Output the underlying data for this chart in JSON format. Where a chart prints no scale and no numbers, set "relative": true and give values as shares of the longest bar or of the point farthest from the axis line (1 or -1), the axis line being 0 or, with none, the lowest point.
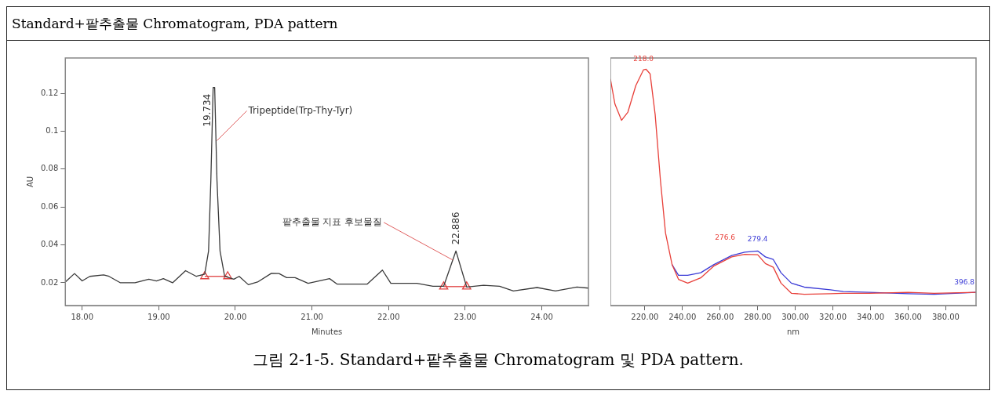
{
  "chart_data": [
    {
      "type": "line",
      "title": "Standard+팥추출물 Chromatogram, PDA pattern",
      "xlabel": "Minutes",
      "ylabel": "AU",
      "xlim": [
        17.78,
        24.61
      ],
      "ylim": [
        0.008,
        0.1386
      ],
      "xticks": [
        {
          "value": 18,
          "label": "18.00"
        },
        {
          "value": 19,
          "label": "19.00"
        },
        {
          "value": 20,
          "label": "20.00"
        },
        {
          "value": 21,
          "label": "21.00"
        },
        {
          "value": 22,
          "label": "22.00"
        },
        {
          "value": 23,
          "label": "23.00"
        },
        {
          "value": 24,
          "label": "24.00"
        }
      ],
      "yticks": [
        0.02,
        0.04,
        0.06,
        0.08,
        0.1,
        0.12
      ],
      "series": [
        {
          "color": "#3a3a3a",
          "marker": "none",
          "x": [
            17.78,
            17.9,
            18.0,
            18.1,
            18.28,
            18.35,
            18.5,
            18.69,
            18.87,
            18.97,
            19.06,
            19.18,
            19.35,
            19.49,
            19.6,
            19.65,
            19.68,
            19.71,
            19.73,
            19.76,
            19.8,
            19.86,
            19.98,
            20.05,
            20.17,
            20.29,
            20.47,
            20.57,
            20.67,
            20.78,
            20.95,
            21.23,
            21.33,
            21.72,
            21.92,
            22.03,
            22.37,
            22.58,
            22.72,
            22.88,
            23.02,
            23.24,
            23.45,
            23.63,
            23.94,
            24.18,
            24.46,
            24.61
          ],
          "values": [
            0.0204,
            0.0249,
            0.021,
            0.0234,
            0.0242,
            0.0234,
            0.02,
            0.02,
            0.0219,
            0.021,
            0.0222,
            0.02,
            0.0264,
            0.0234,
            0.0246,
            0.0368,
            0.074,
            0.123,
            0.123,
            0.074,
            0.0368,
            0.0234,
            0.0219,
            0.0234,
            0.019,
            0.0204,
            0.025,
            0.0249,
            0.0227,
            0.0227,
            0.0197,
            0.0222,
            0.0193,
            0.0193,
            0.0267,
            0.0197,
            0.0197,
            0.0182,
            0.0182,
            0.0368,
            0.0178,
            0.0187,
            0.0182,
            0.0157,
            0.0175,
            0.0157,
            0.0178,
            0.0172
          ]
        },
        {
          "type": "line",
          "color": "#e04040",
          "marker": "triangle",
          "x": [
            19.6,
            19.9
          ],
          "values": [
            0.0234,
            0.0234
          ]
        },
        {
          "type": "line",
          "color": "#e04040",
          "marker": "triangle",
          "x": [
            22.72,
            23.02
          ],
          "values": [
            0.018,
            0.018
          ]
        }
      ],
      "annotations": [
        {
          "text": "19.734",
          "x": 19.734,
          "y": 0.123
        },
        {
          "text": "Tripeptide(Trp-Thy-Tyr)",
          "x": 19.76,
          "y": 0.095
        },
        {
          "text": "22.886",
          "x": 22.886,
          "y": 0.0368
        },
        {
          "text": "팥추출물 지표 후보물질",
          "x": 22.84,
          "y": 0.032
        },
        "그림 2-1-5. Standard+팥추출물 Chromatogram 및 PDA pattern."
      ]
    },
    {
      "type": "line",
      "relative": true,
      "xlabel": "nm",
      "xlim": [
        201.7,
        396.1
      ],
      "xticks": [
        {
          "value": 220,
          "label": "220.00"
        },
        {
          "value": 240,
          "label": "240.00"
        },
        {
          "value": 260,
          "label": "260.00"
        },
        {
          "value": 280,
          "label": "280.00"
        },
        {
          "value": 300,
          "label": "300.00"
        },
        {
          "value": 320,
          "label": "320.00"
        },
        {
          "value": 340,
          "label": "340.00"
        },
        {
          "value": 360,
          "label": "360.00"
        },
        {
          "value": 380,
          "label": "380.00"
        }
      ],
      "series": [
        {
          "color": "#e8403a",
          "x": [
            201.7,
            204.1,
            207.6,
            211.0,
            215.2,
            219.3,
            220.7,
            222.8,
            225.5,
            228.3,
            231.0,
            234.5,
            237.9,
            242.8,
            249.7,
            256.6,
            266.2,
            273.1,
            280.0,
            284.1,
            288.3,
            292.4,
            297.9,
            304.8,
            318.6,
            325.5,
            339.3,
            360.0,
            373.8,
            396.1
          ],
          "values": [
            0.959,
            0.853,
            0.784,
            0.819,
            0.931,
            0.998,
            1.0,
            0.981,
            0.808,
            0.53,
            0.307,
            0.173,
            0.111,
            0.095,
            0.117,
            0.167,
            0.206,
            0.217,
            0.215,
            0.178,
            0.162,
            0.095,
            0.052,
            0.048,
            0.05,
            0.052,
            0.052,
            0.056,
            0.052,
            0.056
          ]
        },
        {
          "color": "#3b3bd6",
          "x": [
            234.5,
            237.9,
            242.8,
            249.7,
            256.6,
            266.2,
            273.1,
            280.0,
            284.1,
            288.3,
            292.4,
            297.9,
            304.8,
            318.6,
            325.5,
            339.3,
            360.0,
            373.8,
            396.1
          ],
          "values": [
            0.173,
            0.128,
            0.128,
            0.139,
            0.173,
            0.212,
            0.226,
            0.231,
            0.206,
            0.195,
            0.139,
            0.095,
            0.078,
            0.067,
            0.059,
            0.056,
            0.05,
            0.048,
            0.056
          ]
        }
      ],
      "annotations": [
        {
          "text": "218.0",
          "x": 219.3,
          "y": 1.0
        },
        {
          "text": "279.4",
          "x": 280.0,
          "y": 0.231
        },
        {
          "text": "276.6",
          "x": 276.0,
          "y": 0.217
        },
        {
          "text": "396.8",
          "x": 396.1,
          "y": 0.056
        }
      ]
    }
  ]
}
